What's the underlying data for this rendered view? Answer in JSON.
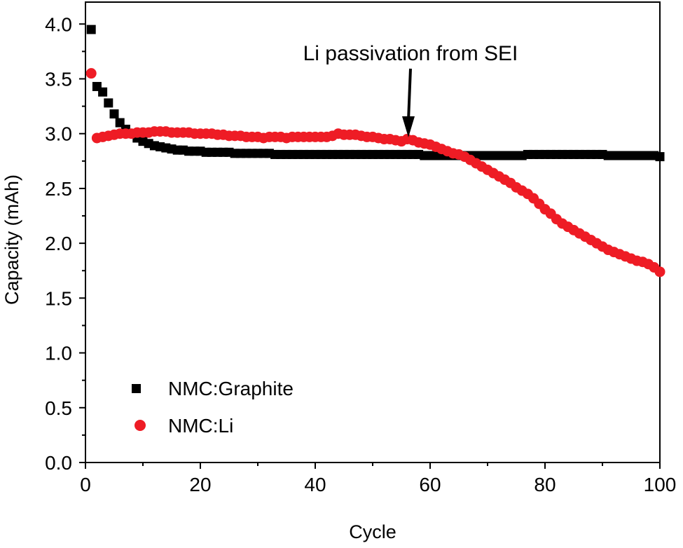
{
  "chart_data": {
    "type": "scatter",
    "title": "",
    "xlabel": "Cycle",
    "ylabel": "Capacity (mAh)",
    "xlim": [
      0,
      100
    ],
    "ylim": [
      0.0,
      4.2
    ],
    "x_ticks": [
      0,
      20,
      40,
      60,
      80,
      100
    ],
    "x_tick_labels": [
      "0",
      "20",
      "40",
      "60",
      "80",
      "100"
    ],
    "y_ticks": [
      0.0,
      0.5,
      1.0,
      1.5,
      2.0,
      2.5,
      3.0,
      3.5,
      4.0
    ],
    "y_tick_labels": [
      "0.0",
      "0.5",
      "1.0",
      "1.5",
      "2.0",
      "2.5",
      "3.0",
      "3.5",
      "4.0"
    ],
    "grid": false,
    "legend_position": "bottom-left",
    "series": [
      {
        "name": "NMC:Graphite",
        "marker": "square",
        "color": "#000000",
        "x": [
          1,
          2,
          3,
          4,
          5,
          6,
          7,
          8,
          9,
          10,
          11,
          12,
          13,
          14,
          15,
          16,
          17,
          18,
          19,
          20,
          21,
          22,
          23,
          24,
          25,
          26,
          27,
          28,
          29,
          30,
          31,
          32,
          33,
          34,
          35,
          36,
          37,
          38,
          39,
          40,
          41,
          42,
          43,
          44,
          45,
          46,
          47,
          48,
          49,
          50,
          51,
          52,
          53,
          54,
          55,
          56,
          57,
          58,
          59,
          60,
          61,
          62,
          63,
          64,
          65,
          66,
          67,
          68,
          69,
          70,
          71,
          72,
          73,
          74,
          75,
          76,
          77,
          78,
          79,
          80,
          81,
          82,
          83,
          84,
          85,
          86,
          87,
          88,
          89,
          90,
          91,
          92,
          93,
          94,
          95,
          96,
          97,
          98,
          99,
          100
        ],
        "y": [
          3.95,
          3.43,
          3.38,
          3.28,
          3.18,
          3.1,
          3.04,
          3.0,
          2.96,
          2.93,
          2.91,
          2.89,
          2.88,
          2.87,
          2.86,
          2.85,
          2.85,
          2.84,
          2.84,
          2.84,
          2.83,
          2.83,
          2.83,
          2.83,
          2.83,
          2.82,
          2.82,
          2.82,
          2.82,
          2.82,
          2.82,
          2.82,
          2.81,
          2.81,
          2.81,
          2.81,
          2.81,
          2.81,
          2.81,
          2.81,
          2.81,
          2.81,
          2.81,
          2.81,
          2.81,
          2.81,
          2.81,
          2.81,
          2.81,
          2.81,
          2.81,
          2.81,
          2.81,
          2.81,
          2.81,
          2.81,
          2.81,
          2.81,
          2.8,
          2.8,
          2.8,
          2.8,
          2.8,
          2.8,
          2.8,
          2.8,
          2.8,
          2.8,
          2.8,
          2.8,
          2.8,
          2.8,
          2.8,
          2.8,
          2.8,
          2.8,
          2.81,
          2.81,
          2.81,
          2.81,
          2.81,
          2.81,
          2.81,
          2.81,
          2.81,
          2.81,
          2.81,
          2.81,
          2.81,
          2.81,
          2.8,
          2.8,
          2.8,
          2.8,
          2.8,
          2.8,
          2.8,
          2.8,
          2.8,
          2.79
        ]
      },
      {
        "name": "NMC:Li",
        "marker": "circle",
        "color": "#ee1c25",
        "x": [
          1,
          2,
          3,
          4,
          5,
          6,
          7,
          8,
          9,
          10,
          11,
          12,
          13,
          14,
          15,
          16,
          17,
          18,
          19,
          20,
          21,
          22,
          23,
          24,
          25,
          26,
          27,
          28,
          29,
          30,
          31,
          32,
          33,
          34,
          35,
          36,
          37,
          38,
          39,
          40,
          41,
          42,
          43,
          44,
          45,
          46,
          47,
          48,
          49,
          50,
          51,
          52,
          53,
          54,
          55,
          56,
          57,
          58,
          59,
          60,
          61,
          62,
          63,
          64,
          65,
          66,
          67,
          68,
          69,
          70,
          71,
          72,
          73,
          74,
          75,
          76,
          77,
          78,
          79,
          80,
          81,
          82,
          83,
          84,
          85,
          86,
          87,
          88,
          89,
          90,
          91,
          92,
          93,
          94,
          95,
          96,
          97,
          98,
          99,
          100
        ],
        "y": [
          3.55,
          2.96,
          2.97,
          2.98,
          2.99,
          3.0,
          3.0,
          3.0,
          3.01,
          3.01,
          3.01,
          3.02,
          3.02,
          3.02,
          3.01,
          3.01,
          3.01,
          3.01,
          3.0,
          3.0,
          3.0,
          3.0,
          2.99,
          2.99,
          2.98,
          2.98,
          2.98,
          2.97,
          2.97,
          2.97,
          2.96,
          2.97,
          2.97,
          2.97,
          2.96,
          2.97,
          2.97,
          2.97,
          2.97,
          2.97,
          2.97,
          2.97,
          2.98,
          3.0,
          2.99,
          2.99,
          2.99,
          2.98,
          2.97,
          2.97,
          2.96,
          2.95,
          2.95,
          2.94,
          2.93,
          2.95,
          2.94,
          2.92,
          2.91,
          2.9,
          2.88,
          2.86,
          2.84,
          2.82,
          2.81,
          2.79,
          2.76,
          2.73,
          2.7,
          2.67,
          2.64,
          2.61,
          2.58,
          2.55,
          2.51,
          2.48,
          2.45,
          2.41,
          2.36,
          2.31,
          2.27,
          2.22,
          2.18,
          2.15,
          2.12,
          2.09,
          2.06,
          2.03,
          2.0,
          1.97,
          1.94,
          1.92,
          1.9,
          1.88,
          1.86,
          1.84,
          1.83,
          1.81,
          1.78,
          1.74
        ]
      }
    ],
    "annotations": [
      {
        "text": "Li passivation from SEI",
        "arrow_to": {
          "x": 56,
          "y": 2.93
        }
      }
    ]
  }
}
